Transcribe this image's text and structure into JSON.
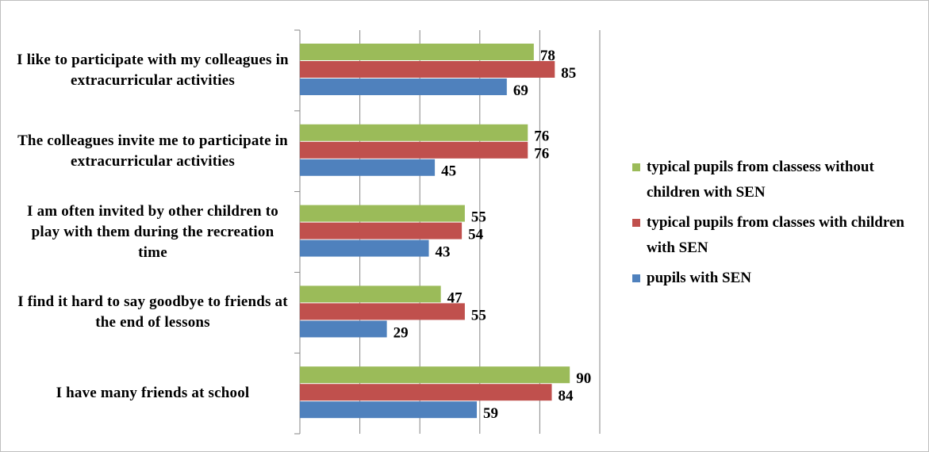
{
  "chart_data": {
    "type": "bar",
    "orientation": "horizontal",
    "categories": [
      "I like to participate with my colleagues in extracurricular activities",
      "The  colleagues invite me to participate in extracurricular activities",
      "I am often invited by other children to play with them during the  recreation time",
      "I find it hard to say goodbye to friends at the end of lessons",
      "I have many friends at school"
    ],
    "series": [
      {
        "name": "typical pupils from classess without children with SEN",
        "color": "#9bbb59",
        "values": [
          78,
          76,
          55,
          47,
          90
        ]
      },
      {
        "name": "typical pupils from classes with children with SEN",
        "color": "#c0504d",
        "values": [
          85,
          76,
          54,
          55,
          84
        ]
      },
      {
        "name": "pupils with SEN",
        "color": "#4f81bd",
        "values": [
          69,
          45,
          43,
          29,
          59
        ]
      }
    ],
    "xlim": [
      0,
      100
    ],
    "xticks": [
      0,
      20,
      40,
      60,
      80,
      100
    ],
    "grid": true,
    "legend": "right"
  }
}
